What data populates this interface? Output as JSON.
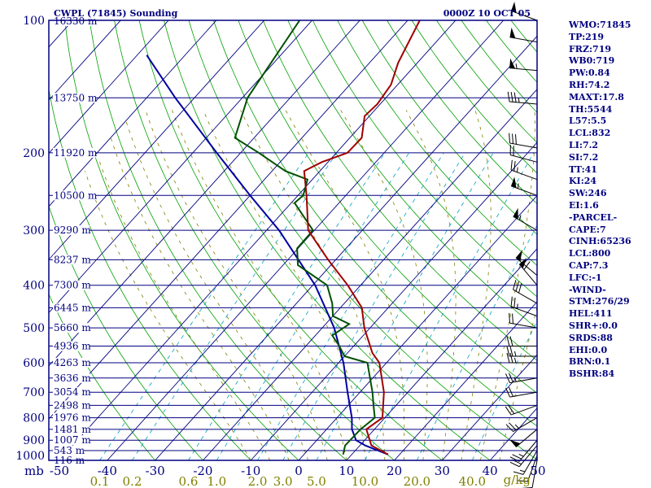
{
  "header": {
    "station": "CWPL (71845) Sounding",
    "time": "0000Z 10 OCT 05"
  },
  "indices": [
    "WMO:71845",
    "TP:219",
    "FRZ:719",
    "WB0:719",
    "PW:0.84",
    "RH:74.2",
    "MAXT:17.8",
    "TH:5544",
    "L57:5.5",
    "LCL:832",
    "LI:7.2",
    "SI:7.2",
    "TT:41",
    "KI:24",
    "SW:246",
    "EI:1.6",
    "-PARCEL-",
    "CAPE:7",
    "CINH:65236",
    "LCL:800",
    "CAP:7.3",
    "LFC:-1",
    "-WIND-",
    "STM:276/29",
    "HEL:411",
    "SHR+:0.0",
    "SRDS:88",
    "EHI:0.0",
    "BRN:0.1",
    "BSHR:84"
  ],
  "colors": {
    "frame": "#000080",
    "isobar": "#000080",
    "isotherm": "#000080",
    "dry_adiabat": "#00a000",
    "moist_adiabat": "#808000",
    "mixing_ratio": "#00a0c0",
    "temperature": "#a00000",
    "dewpoint": "#005000",
    "parcel": "#0000a0",
    "wind": "#000000"
  },
  "chart_data": {
    "type": "skew-t",
    "pressure_range_mb": [
      1000,
      100
    ],
    "pressure_label_unit": "mb",
    "pressure_ticks": [
      100,
      200,
      300,
      400,
      500,
      600,
      700,
      800,
      900,
      1000
    ],
    "heights": [
      {
        "p": 100,
        "label": "16330 m"
      },
      {
        "p": 150,
        "label": "13750 m"
      },
      {
        "p": 200,
        "label": "11920 m"
      },
      {
        "p": 250,
        "label": "10500 m"
      },
      {
        "p": 300,
        "label": "9290 m"
      },
      {
        "p": 350,
        "label": "8237 m"
      },
      {
        "p": 400,
        "label": "7300 m"
      },
      {
        "p": 450,
        "label": "6445 m"
      },
      {
        "p": 500,
        "label": "5660 m"
      },
      {
        "p": 550,
        "label": "4936 m"
      },
      {
        "p": 600,
        "label": "4263 m"
      },
      {
        "p": 650,
        "label": "3636 m"
      },
      {
        "p": 700,
        "label": "3054 m"
      },
      {
        "p": 750,
        "label": "2498 m"
      },
      {
        "p": 800,
        "label": "1976 m"
      },
      {
        "p": 850,
        "label": "1481 m"
      },
      {
        "p": 900,
        "label": "1007 m"
      },
      {
        "p": 950,
        "label": "543 m"
      },
      {
        "p": 1000,
        "label": "116 m"
      }
    ],
    "temperature_ticks_c": [
      "-50",
      "-40",
      "-30",
      "-20",
      "-10",
      "0",
      "10",
      "20",
      "30",
      "40",
      "50"
    ],
    "mixing_ratio_labels": [
      "0.1",
      "0.2",
      "0.6",
      "1.0",
      "2.0",
      "3.0",
      "5.0",
      "10.0",
      "20.0",
      "40.0"
    ],
    "mixing_ratio_unit": "g/kg",
    "temperature_profile": [
      {
        "p": 970,
        "t": 17.6
      },
      {
        "p": 925,
        "t": 12.4
      },
      {
        "p": 850,
        "t": 8.3
      },
      {
        "p": 800,
        "t": 9.5
      },
      {
        "p": 700,
        "t": 5.0
      },
      {
        "p": 600,
        "t": -1.5
      },
      {
        "p": 570,
        "t": -4.8
      },
      {
        "p": 500,
        "t": -11.2
      },
      {
        "p": 450,
        "t": -15.5
      },
      {
        "p": 400,
        "t": -22.7
      },
      {
        "p": 350,
        "t": -31.6
      },
      {
        "p": 300,
        "t": -41.3
      },
      {
        "p": 250,
        "t": -48.2
      },
      {
        "p": 220,
        "t": -53.3
      },
      {
        "p": 210,
        "t": -51.3
      },
      {
        "p": 200,
        "t": -47.7
      },
      {
        "p": 185,
        "t": -47.5
      },
      {
        "p": 165,
        "t": -51.0
      },
      {
        "p": 155,
        "t": -50.6
      },
      {
        "p": 140,
        "t": -51.4
      },
      {
        "p": 125,
        "t": -54.0
      },
      {
        "p": 100,
        "t": -57.5
      }
    ],
    "dewpoint_profile": [
      {
        "p": 970,
        "td": 8.2
      },
      {
        "p": 925,
        "td": 6.9
      },
      {
        "p": 850,
        "td": 7.1
      },
      {
        "p": 800,
        "td": 7.9
      },
      {
        "p": 750,
        "td": 5.3
      },
      {
        "p": 700,
        "td": 2.6
      },
      {
        "p": 600,
        "td": -4.0
      },
      {
        "p": 580,
        "td": -10.0
      },
      {
        "p": 550,
        "td": -13.0
      },
      {
        "p": 520,
        "td": -16.5
      },
      {
        "p": 490,
        "td": -15.1
      },
      {
        "p": 470,
        "td": -20.0
      },
      {
        "p": 440,
        "td": -22.5
      },
      {
        "p": 400,
        "td": -27.0
      },
      {
        "p": 360,
        "td": -36.9
      },
      {
        "p": 330,
        "td": -40.2
      },
      {
        "p": 300,
        "td": -40.3
      },
      {
        "p": 260,
        "td": -49.3
      },
      {
        "p": 250,
        "td": -48.9
      },
      {
        "p": 230,
        "td": -51.0
      },
      {
        "p": 220,
        "td": -57.2
      },
      {
        "p": 200,
        "td": -66.2
      },
      {
        "p": 185,
        "td": -74.0
      },
      {
        "p": 150,
        "td": -78.9
      },
      {
        "p": 130,
        "td": -80.2
      },
      {
        "p": 100,
        "td": -82.6
      }
    ],
    "parcel_profile": [
      {
        "p": 970,
        "t": 17.6
      },
      {
        "p": 925,
        "t": 11.1
      },
      {
        "p": 900,
        "t": 8.2
      },
      {
        "p": 850,
        "t": 5.3
      },
      {
        "p": 800,
        "t": 3.1
      },
      {
        "p": 700,
        "t": -2.6
      },
      {
        "p": 600,
        "t": -9.0
      },
      {
        "p": 500,
        "t": -17.5
      },
      {
        "p": 400,
        "t": -29.5
      },
      {
        "p": 300,
        "t": -47.4
      },
      {
        "p": 250,
        "t": -60.0
      },
      {
        "p": 200,
        "t": -75.0
      },
      {
        "p": 150,
        "t": -94.0
      },
      {
        "p": 120,
        "t": -108.0
      }
    ],
    "wind_barbs": [
      {
        "p": 100,
        "dir": 290,
        "kt": 50
      },
      {
        "p": 112,
        "dir": 280,
        "kt": 50
      },
      {
        "p": 130,
        "dir": 275,
        "kt": 55
      },
      {
        "p": 155,
        "dir": 275,
        "kt": 35
      },
      {
        "p": 195,
        "dir": 280,
        "kt": 30
      },
      {
        "p": 210,
        "dir": 285,
        "kt": 20
      },
      {
        "p": 230,
        "dir": 290,
        "kt": 25
      },
      {
        "p": 250,
        "dir": 290,
        "kt": 55
      },
      {
        "p": 300,
        "dir": 300,
        "kt": 55
      },
      {
        "p": 380,
        "dir": 310,
        "kt": 50
      },
      {
        "p": 400,
        "dir": 320,
        "kt": 60
      },
      {
        "p": 440,
        "dir": 300,
        "kt": 30
      },
      {
        "p": 470,
        "dir": 290,
        "kt": 25
      },
      {
        "p": 500,
        "dir": 280,
        "kt": 20
      },
      {
        "p": 550,
        "dir": 270,
        "kt": 20
      },
      {
        "p": 580,
        "dir": 270,
        "kt": 25
      },
      {
        "p": 600,
        "dir": 270,
        "kt": 25
      },
      {
        "p": 650,
        "dir": 260,
        "kt": 25
      },
      {
        "p": 700,
        "dir": 260,
        "kt": 20
      },
      {
        "p": 750,
        "dir": 250,
        "kt": 20
      },
      {
        "p": 800,
        "dir": 240,
        "kt": 25
      },
      {
        "p": 850,
        "dir": 230,
        "kt": 50
      },
      {
        "p": 900,
        "dir": 220,
        "kt": 25
      },
      {
        "p": 925,
        "dir": 220,
        "kt": 20
      },
      {
        "p": 950,
        "dir": 210,
        "kt": 15
      },
      {
        "p": 975,
        "dir": 200,
        "kt": 15
      },
      {
        "p": 1000,
        "dir": 190,
        "kt": 10
      }
    ]
  }
}
